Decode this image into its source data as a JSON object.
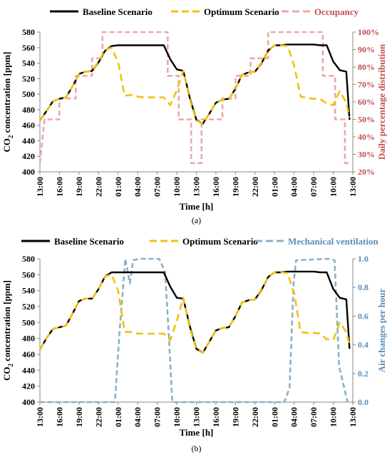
{
  "colors": {
    "baseline": "#000000",
    "optimum": "#f2c10a",
    "occupancy": "#eea7aa",
    "occupancy_text": "#c0504d",
    "ventilation": "#8cafc4",
    "ventilation_text": "#5b8db8",
    "axis": "#888888"
  },
  "chart_data": [
    {
      "type": "line",
      "panel_label": "(a)",
      "xlabel": "Time [h]",
      "ylabel_main": "CO",
      "ylabel_sub": "2",
      "ylabel_rest": " concentration [ppm]",
      "y2label": "Daily percentage distribution",
      "ylim": [
        400,
        580
      ],
      "yticks": [
        "400",
        "420",
        "440",
        "460",
        "480",
        "500",
        "520",
        "540",
        "560",
        "580"
      ],
      "y2lim": [
        20,
        100
      ],
      "y2ticks": [
        "20%",
        "30%",
        "40%",
        "50%",
        "60%",
        "70%",
        "80%",
        "90%",
        "100%"
      ],
      "xticks": [
        "13:00",
        "16:00",
        "19:00",
        "22:00",
        "01:00",
        "04:00",
        "07:00",
        "10:00",
        "13:00",
        "16:00",
        "19:00",
        "22:00",
        "01:00",
        "04:00",
        "07:00",
        "10:00",
        "13:00"
      ],
      "xrange": [
        0,
        48
      ],
      "grid": false,
      "legend_position": "top",
      "series": [
        {
          "name": "Baseline Scenario",
          "axis": "left",
          "style": "solid",
          "x": [
            0,
            1,
            2,
            3,
            4,
            5,
            6,
            7,
            8,
            9,
            10,
            11,
            12,
            13,
            14,
            15,
            16,
            17,
            18,
            19,
            20,
            21,
            22,
            23,
            24,
            25,
            26,
            27,
            28,
            29,
            30,
            31,
            32,
            33,
            34,
            35,
            36,
            37,
            38,
            39,
            40,
            41,
            42,
            43,
            44,
            45,
            46,
            47,
            47.5
          ],
          "y": [
            466,
            478,
            491,
            494,
            496,
            510,
            526,
            529,
            530,
            541,
            556,
            562,
            563,
            563,
            563,
            563,
            563,
            563,
            563,
            563,
            545,
            532,
            530,
            495,
            467,
            462,
            475,
            489,
            493,
            494,
            507,
            525,
            528,
            529,
            540,
            556,
            563,
            563,
            564,
            564,
            564,
            564,
            564,
            563,
            563,
            542,
            531,
            529,
            467
          ]
        },
        {
          "name": "Optimum Scenario",
          "axis": "left",
          "style": "dashed",
          "x": [
            0,
            1,
            2,
            3,
            4,
            5,
            6,
            7,
            8,
            9,
            10,
            11,
            12,
            13,
            14,
            15,
            16,
            17,
            18,
            19,
            20,
            21,
            22,
            23,
            24,
            25,
            26,
            27,
            28,
            29,
            30,
            31,
            32,
            33,
            34,
            35,
            36,
            37,
            38,
            39,
            40,
            41,
            42,
            43,
            44,
            45,
            46,
            47,
            47.5
          ],
          "y": [
            466,
            478,
            491,
            494,
            496,
            510,
            526,
            529,
            530,
            542,
            557,
            560,
            541,
            498,
            499,
            497,
            496,
            496,
            496,
            496,
            486,
            505,
            530,
            493,
            466,
            462,
            475,
            489,
            493,
            494,
            507,
            525,
            528,
            529,
            541,
            556,
            563,
            563,
            562,
            537,
            497,
            495,
            494,
            494,
            488,
            486,
            504,
            489,
            470
          ]
        },
        {
          "name": "Occupancy",
          "axis": "right",
          "style": "dashed",
          "x": [
            0,
            0.7,
            0.7,
            3,
            3,
            5.5,
            5.5,
            8,
            8,
            9.6,
            9.6,
            19.6,
            19.6,
            21.3,
            21.3,
            23.2,
            23.2,
            24.8,
            24.8,
            28,
            28,
            30,
            30,
            32.3,
            32.3,
            35,
            35,
            43.4,
            43.4,
            45.3,
            45.3,
            46.8,
            46.8,
            47.6
          ],
          "y": [
            25,
            50,
            50,
            50,
            62,
            62,
            75,
            75,
            85,
            85,
            100,
            100,
            75,
            75,
            50,
            50,
            25,
            25,
            50,
            50,
            62,
            62,
            75,
            75,
            85,
            85,
            100,
            100,
            75,
            75,
            50,
            50,
            25,
            25
          ]
        }
      ]
    },
    {
      "type": "line",
      "panel_label": "(b)",
      "xlabel": "Time [h]",
      "ylabel_main": "CO",
      "ylabel_sub": "2",
      "ylabel_rest": " concentration [ppm]",
      "y2label": "Air changes per hour",
      "ylim": [
        400,
        580
      ],
      "yticks": [
        "400",
        "420",
        "440",
        "460",
        "480",
        "500",
        "520",
        "540",
        "560",
        "580"
      ],
      "y2lim": [
        0,
        1.0
      ],
      "y2ticks": [
        "0.0",
        "0.2",
        "0.4",
        "0.6",
        "0.8",
        "1.0"
      ],
      "xticks": [
        "13:00",
        "16:00",
        "19:00",
        "22:00",
        "01:00",
        "04:00",
        "07:00",
        "10:00",
        "13:00",
        "16:00",
        "19:00",
        "22:00",
        "01:00",
        "04:00",
        "07:00",
        "10:00",
        "13:00"
      ],
      "xrange": [
        0,
        48
      ],
      "grid": false,
      "legend_position": "top",
      "series": [
        {
          "name": "Baseline Scenario",
          "axis": "left",
          "style": "solid",
          "x": [
            0,
            1,
            2,
            3,
            4,
            5,
            6,
            7,
            8,
            9,
            10,
            11,
            12,
            13,
            14,
            15,
            16,
            17,
            18,
            19,
            20,
            21,
            22,
            23,
            24,
            25,
            26,
            27,
            28,
            29,
            30,
            31,
            32,
            33,
            34,
            35,
            36,
            37,
            38,
            39,
            40,
            41,
            42,
            43,
            44,
            45,
            46,
            47,
            47.5
          ],
          "y": [
            466,
            480,
            492,
            494,
            496,
            511,
            527,
            530,
            530,
            542,
            558,
            563,
            563,
            563,
            563,
            563,
            563,
            563,
            563,
            563,
            545,
            531,
            530,
            495,
            467,
            462,
            476,
            490,
            493,
            494,
            508,
            525,
            528,
            529,
            541,
            557,
            563,
            563,
            564,
            564,
            564,
            564,
            564,
            563,
            563,
            542,
            531,
            529,
            467
          ]
        },
        {
          "name": "Optimum Scenario",
          "axis": "left",
          "style": "dashed",
          "x": [
            0,
            1,
            2,
            3,
            4,
            5,
            6,
            7,
            8,
            9,
            10,
            11,
            12,
            13,
            14,
            15,
            16,
            17,
            18,
            19,
            20,
            21,
            22,
            23,
            24,
            25,
            26,
            27,
            28,
            29,
            30,
            31,
            32,
            33,
            34,
            35,
            36,
            37,
            38,
            39,
            40,
            41,
            42,
            43,
            44,
            45,
            46,
            47,
            47.5
          ],
          "y": [
            466,
            480,
            492,
            494,
            496,
            511,
            527,
            530,
            530,
            542,
            558,
            560,
            540,
            488,
            488,
            486,
            486,
            486,
            486,
            486,
            478,
            502,
            531,
            493,
            466,
            462,
            476,
            490,
            493,
            494,
            508,
            525,
            528,
            529,
            542,
            557,
            563,
            563,
            562,
            537,
            488,
            487,
            487,
            486,
            479,
            478,
            500,
            488,
            472
          ]
        },
        {
          "name": "Mechanical ventilation",
          "axis": "right",
          "style": "dashed",
          "x": [
            0,
            11.5,
            12.2,
            13.1,
            13.8,
            14.3,
            15.3,
            18.3,
            19.2,
            19.8,
            20.3,
            20.5,
            22,
            24,
            26,
            28,
            30,
            32,
            34,
            36,
            37.5,
            38.3,
            38.9,
            39.3,
            44.2,
            45.2,
            45.9,
            47.2
          ],
          "y": [
            0,
            0,
            0.48,
            1.0,
            0.83,
            0.99,
            1.0,
            1.0,
            0.91,
            0.45,
            0,
            0,
            0,
            0,
            0,
            0,
            0,
            0,
            0,
            0,
            0,
            0.1,
            0.82,
            0.99,
            1.0,
            0.99,
            0.25,
            0
          ]
        }
      ]
    }
  ]
}
